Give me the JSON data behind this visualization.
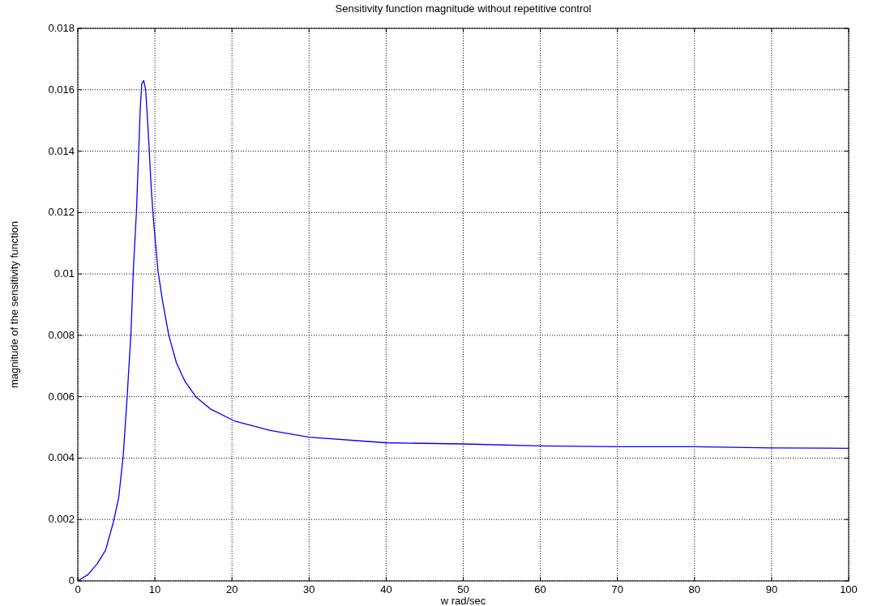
{
  "chart_data": {
    "type": "line",
    "title": "Sensitivity function magnitude without repetitive control",
    "xlabel": "w rad/sec",
    "ylabel": "magnitude of the sensitivity function",
    "xlim": [
      0,
      100
    ],
    "xticks": [
      0,
      10,
      20,
      30,
      40,
      50,
      60,
      70,
      80,
      90,
      100
    ],
    "ylim": [
      0,
      0.018
    ],
    "yticks": [
      0,
      0.002,
      0.004,
      0.006,
      0.008,
      0.01,
      0.012,
      0.014,
      0.016,
      0.018
    ],
    "grid": true,
    "line_style": "solid",
    "series": [
      {
        "color": "#0000ff",
        "x": [
          0,
          1.3,
          2.5,
          3.6,
          4.6,
          5.3,
          5.9,
          6.4,
          6.9,
          7.2,
          7.6,
          7.9,
          8.1,
          8.3,
          8.55,
          8.8,
          9.0,
          9.25,
          9.5,
          9.8,
          10.4,
          11.0,
          11.8,
          12.8,
          13.9,
          15.3,
          17.2,
          20.4,
          25,
          30,
          40,
          50,
          60,
          70,
          80,
          90,
          100
        ],
        "values": [
          0,
          0.0002,
          0.00055,
          0.001,
          0.0019,
          0.0027,
          0.0041,
          0.006,
          0.0081,
          0.0101,
          0.012,
          0.014,
          0.0154,
          0.0162,
          0.0163,
          0.016,
          0.0152,
          0.0141,
          0.0129,
          0.0118,
          0.0101,
          0.0091,
          0.008,
          0.0071,
          0.0065,
          0.006,
          0.0056,
          0.0052,
          0.0049,
          0.00468,
          0.0045,
          0.00446,
          0.0044,
          0.00437,
          0.00437,
          0.00433,
          0.00432
        ]
      }
    ]
  }
}
